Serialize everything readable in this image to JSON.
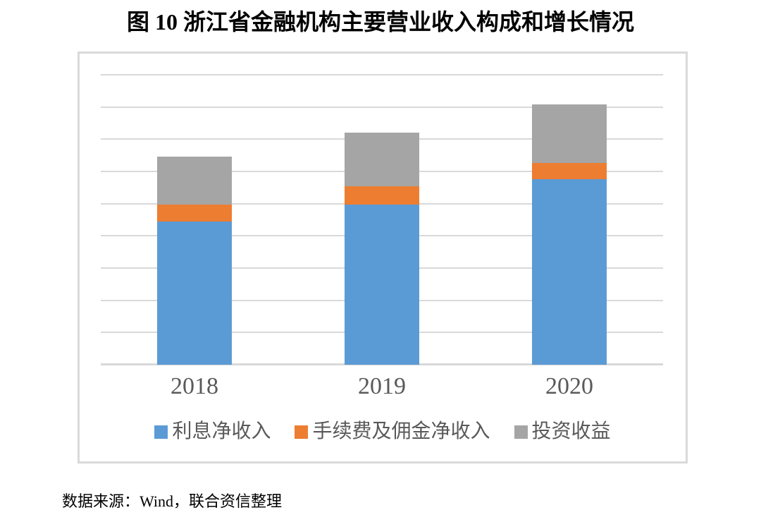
{
  "title": "图 10 浙江省金融机构主要营业收入构成和增长情况",
  "source_note": "数据来源：Wind，联合资信整理",
  "chart_data": {
    "type": "bar",
    "stacked": true,
    "title": "图 10 浙江省金融机构主要营业收入构成和增长情况",
    "categories": [
      "2018",
      "2019",
      "2020"
    ],
    "series": [
      {
        "name": "利息净收入",
        "color": "#5B9BD5",
        "values": [
          4.44,
          4.97,
          5.75
        ]
      },
      {
        "name": "手续费及佣金净收入",
        "color": "#ED7D31",
        "values": [
          0.53,
          0.58,
          0.51
        ]
      },
      {
        "name": "投资收益",
        "color": "#A5A5A5",
        "values": [
          1.5,
          1.66,
          1.81
        ]
      }
    ],
    "stack_totals": [
      6.47,
      7.21,
      8.07
    ],
    "xlabel": "",
    "ylabel": "",
    "ylim": [
      0,
      9.7
    ],
    "y_gridline_step": 1,
    "y_tick_labels_shown": false,
    "units": "relative gridline units (y axis unlabeled)",
    "grid": true,
    "legend_position": "bottom-inside"
  },
  "colors": {
    "series_blue": "#5B9BD5",
    "series_orange": "#ED7D31",
    "series_gray": "#A5A5A5",
    "gridline": "#D9D9D9",
    "chart_border": "#DADADA",
    "axis_text": "#595959",
    "background": "#FFFFFF"
  }
}
